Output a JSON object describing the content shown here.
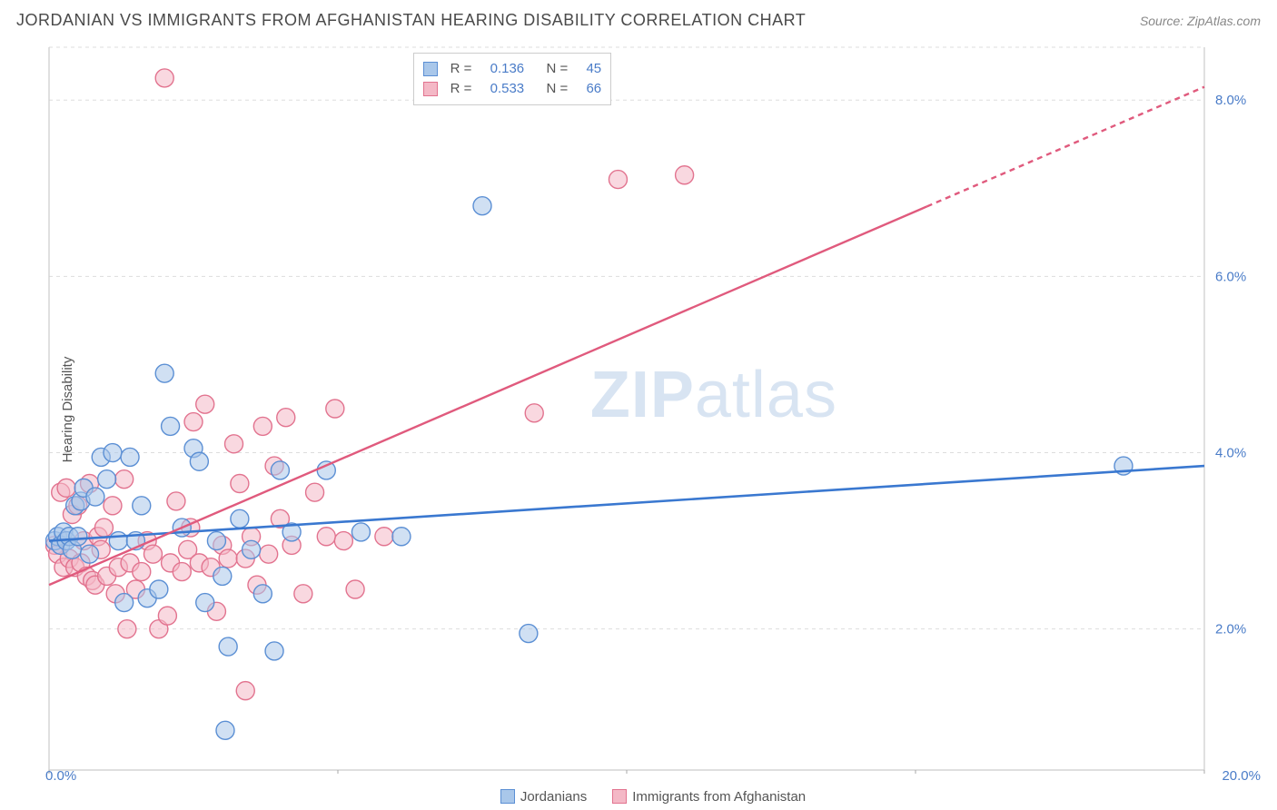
{
  "title": "JORDANIAN VS IMMIGRANTS FROM AFGHANISTAN HEARING DISABILITY CORRELATION CHART",
  "source": "Source: ZipAtlas.com",
  "ylabel": "Hearing Disability",
  "watermark_a": "ZIP",
  "watermark_b": "atlas",
  "chart": {
    "type": "scatter",
    "background_color": "#ffffff",
    "grid_color": "#dddddd",
    "axis_color": "#cccccc",
    "tick_color": "#aaaaaa",
    "xlim": [
      0,
      20
    ],
    "ylim": [
      0.4,
      8.6
    ],
    "xtick_values": [
      0,
      5,
      10,
      15,
      20
    ],
    "xtick_labels": [
      "0.0%",
      "",
      "",
      "",
      "20.0%"
    ],
    "ytick_values": [
      2,
      4,
      6,
      8
    ],
    "ytick_labels": [
      "2.0%",
      "4.0%",
      "6.0%",
      "8.0%"
    ],
    "ytick_color": "#4a7cc8",
    "xtick_label_color": "#4a7cc8",
    "marker_radius": 10,
    "marker_stroke_width": 1.4,
    "series": [
      {
        "name": "Jordanians",
        "fill": "#a9c7ea",
        "stroke": "#5b8fd4",
        "fill_opacity": 0.55,
        "R": "0.136",
        "N": "45",
        "trend": {
          "x1": 0,
          "y1": 3.0,
          "x2": 20,
          "y2": 3.85,
          "color": "#3a78d0",
          "width": 2.6,
          "dash_after_x": null
        },
        "points": [
          [
            0.1,
            3.0
          ],
          [
            0.15,
            3.05
          ],
          [
            0.2,
            2.95
          ],
          [
            0.25,
            3.1
          ],
          [
            0.3,
            3.0
          ],
          [
            0.35,
            3.05
          ],
          [
            0.4,
            2.9
          ],
          [
            0.45,
            3.4
          ],
          [
            0.5,
            3.05
          ],
          [
            0.55,
            3.45
          ],
          [
            0.6,
            3.6
          ],
          [
            0.7,
            2.85
          ],
          [
            0.8,
            3.5
          ],
          [
            0.9,
            3.95
          ],
          [
            1.0,
            3.7
          ],
          [
            1.1,
            4.0
          ],
          [
            1.2,
            3.0
          ],
          [
            1.3,
            2.3
          ],
          [
            1.4,
            3.95
          ],
          [
            1.5,
            3.0
          ],
          [
            1.6,
            3.4
          ],
          [
            1.7,
            2.35
          ],
          [
            1.9,
            2.45
          ],
          [
            2.0,
            4.9
          ],
          [
            2.1,
            4.3
          ],
          [
            2.3,
            3.15
          ],
          [
            2.5,
            4.05
          ],
          [
            2.6,
            3.9
          ],
          [
            2.7,
            2.3
          ],
          [
            2.9,
            3.0
          ],
          [
            3.0,
            2.6
          ],
          [
            3.1,
            1.8
          ],
          [
            3.3,
            3.25
          ],
          [
            3.5,
            2.9
          ],
          [
            3.7,
            2.4
          ],
          [
            3.9,
            1.75
          ],
          [
            4.0,
            3.8
          ],
          [
            4.2,
            3.1
          ],
          [
            4.8,
            3.8
          ],
          [
            5.4,
            3.1
          ],
          [
            6.1,
            3.05
          ],
          [
            7.5,
            6.8
          ],
          [
            8.3,
            1.95
          ],
          [
            3.05,
            0.85
          ],
          [
            18.6,
            3.85
          ]
        ]
      },
      {
        "name": "Immigrants from Afghanistan",
        "fill": "#f4b8c6",
        "stroke": "#e2738f",
        "fill_opacity": 0.55,
        "R": "0.533",
        "N": "66",
        "trend": {
          "x1": 0,
          "y1": 2.5,
          "x2": 20,
          "y2": 8.15,
          "color": "#e05a7d",
          "width": 2.4,
          "dash_after_x": 15.2
        },
        "points": [
          [
            0.1,
            2.95
          ],
          [
            0.15,
            2.85
          ],
          [
            0.2,
            3.55
          ],
          [
            0.25,
            2.7
          ],
          [
            0.3,
            3.6
          ],
          [
            0.35,
            2.8
          ],
          [
            0.4,
            3.3
          ],
          [
            0.45,
            2.7
          ],
          [
            0.5,
            3.4
          ],
          [
            0.55,
            2.75
          ],
          [
            0.6,
            3.0
          ],
          [
            0.65,
            2.6
          ],
          [
            0.7,
            3.65
          ],
          [
            0.75,
            2.55
          ],
          [
            0.8,
            2.5
          ],
          [
            0.85,
            3.05
          ],
          [
            0.9,
            2.9
          ],
          [
            1.0,
            2.6
          ],
          [
            1.1,
            3.4
          ],
          [
            1.15,
            2.4
          ],
          [
            1.2,
            2.7
          ],
          [
            1.3,
            3.7
          ],
          [
            1.4,
            2.75
          ],
          [
            1.5,
            2.45
          ],
          [
            1.6,
            2.65
          ],
          [
            1.7,
            3.0
          ],
          [
            1.8,
            2.85
          ],
          [
            1.9,
            2.0
          ],
          [
            2.0,
            8.25
          ],
          [
            2.1,
            2.75
          ],
          [
            2.2,
            3.45
          ],
          [
            2.3,
            2.65
          ],
          [
            2.4,
            2.9
          ],
          [
            2.5,
            4.35
          ],
          [
            2.6,
            2.75
          ],
          [
            2.7,
            4.55
          ],
          [
            2.8,
            2.7
          ],
          [
            2.9,
            2.2
          ],
          [
            3.0,
            2.95
          ],
          [
            3.1,
            2.8
          ],
          [
            3.2,
            4.1
          ],
          [
            3.3,
            3.65
          ],
          [
            3.4,
            2.8
          ],
          [
            3.5,
            3.05
          ],
          [
            3.6,
            2.5
          ],
          [
            3.7,
            4.3
          ],
          [
            3.8,
            2.85
          ],
          [
            3.9,
            3.85
          ],
          [
            4.0,
            3.25
          ],
          [
            4.1,
            4.4
          ],
          [
            4.2,
            2.95
          ],
          [
            4.4,
            2.4
          ],
          [
            4.6,
            3.55
          ],
          [
            4.8,
            3.05
          ],
          [
            5.1,
            3.0
          ],
          [
            5.3,
            2.45
          ],
          [
            5.8,
            3.05
          ],
          [
            3.4,
            1.3
          ],
          [
            1.35,
            2.0
          ],
          [
            2.05,
            2.15
          ],
          [
            4.95,
            4.5
          ],
          [
            8.4,
            4.45
          ],
          [
            9.85,
            7.1
          ],
          [
            11.0,
            7.15
          ],
          [
            2.45,
            3.15
          ],
          [
            0.95,
            3.15
          ]
        ]
      }
    ],
    "legend_bottom": [
      {
        "label": "Jordanians",
        "fill": "#a9c7ea",
        "stroke": "#5b8fd4"
      },
      {
        "label": "Immigrants from Afghanistan",
        "fill": "#f4b8c6",
        "stroke": "#e2738f"
      }
    ]
  },
  "stat_legend": {
    "rows": [
      {
        "swatch_fill": "#a9c7ea",
        "swatch_stroke": "#5b8fd4",
        "R_label": "R =",
        "R": "0.136",
        "N_label": "N =",
        "N": "45"
      },
      {
        "swatch_fill": "#f4b8c6",
        "swatch_stroke": "#e2738f",
        "R_label": "R =",
        "R": "0.533",
        "N_label": "N =",
        "N": "66"
      }
    ]
  }
}
